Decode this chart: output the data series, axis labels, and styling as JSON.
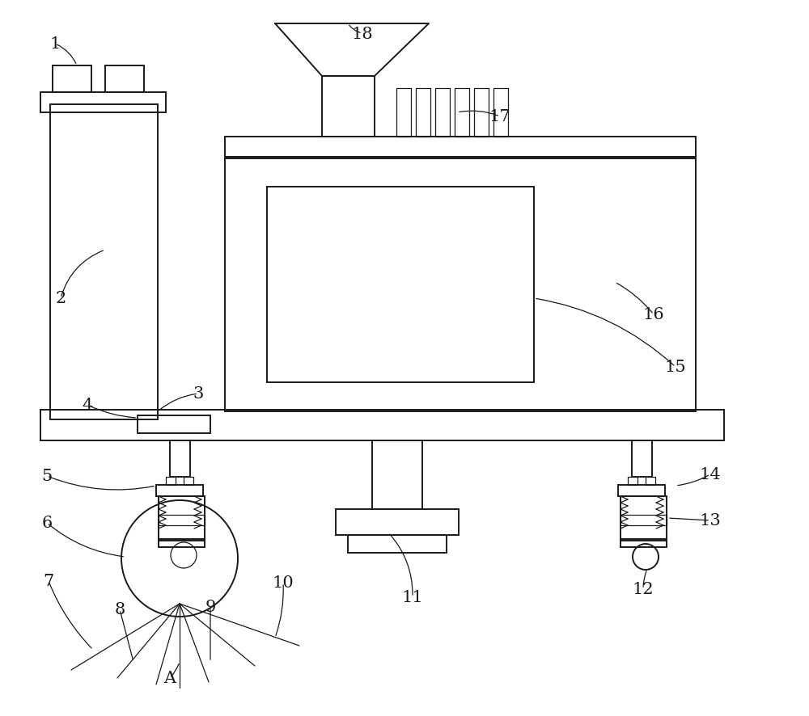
{
  "bg_color": "#ffffff",
  "line_color": "#1a1a1a",
  "lw": 1.4,
  "tlw": 0.9,
  "fig_width": 10.0,
  "fig_height": 8.87,
  "label_fs": 15
}
